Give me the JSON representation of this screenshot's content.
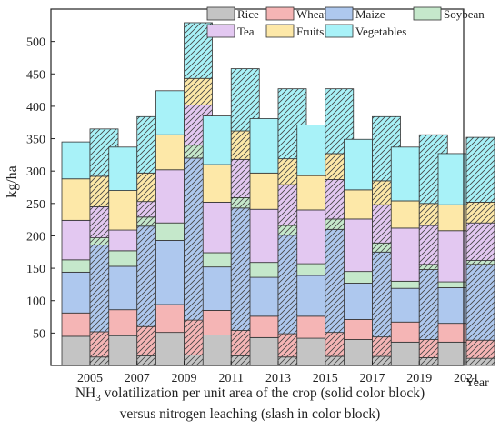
{
  "chart_data": {
    "type": "bar",
    "subtype": "stacked-paired",
    "categories": [
      "2005",
      "2007",
      "2009",
      "2011",
      "2013",
      "2015",
      "2017",
      "2019",
      "2021"
    ],
    "xlabel": "Year",
    "ylabel": "kg/ha",
    "ylim": [
      0,
      550
    ],
    "yticks": [
      50,
      100,
      150,
      200,
      250,
      300,
      350,
      400,
      450,
      500
    ],
    "grid": false,
    "legend_position": "top",
    "caption_line1": {
      "prefix": "NH",
      "subscript": "3",
      "suffix": " volatilization per unit area of the crop (solid color block)"
    },
    "caption_line2": "versus nitrogen leaching (slash in color block)",
    "series": [
      {
        "name": "Rice",
        "color": "#c4c4c4",
        "volatilization": [
          45,
          46,
          51,
          47,
          43,
          42,
          40,
          36,
          36
        ],
        "leaching": [
          13,
          15,
          16,
          15,
          13,
          14,
          14,
          12,
          11
        ]
      },
      {
        "name": "Wheat",
        "color": "#f5b5b5",
        "volatilization": [
          36,
          40,
          43,
          38,
          33,
          34,
          31,
          31,
          29
        ],
        "leaching": [
          39,
          45,
          54,
          39,
          36,
          37,
          30,
          28,
          28
        ]
      },
      {
        "name": "Maize",
        "color": "#aec8ee",
        "volatilization": [
          63,
          67,
          99,
          67,
          60,
          63,
          56,
          52,
          55
        ],
        "leaching": [
          134,
          155,
          250,
          189,
          152,
          159,
          131,
          108,
          117
        ]
      },
      {
        "name": "Soybean",
        "color": "#c5e8cb",
        "volatilization": [
          19,
          24,
          27,
          22,
          23,
          18,
          18,
          11,
          9
        ],
        "leaching": [
          11,
          14,
          20,
          16,
          15,
          16,
          14,
          8,
          6
        ]
      },
      {
        "name": "Tea",
        "color": "#e3c8f1",
        "volatilization": [
          61,
          32,
          82,
          78,
          82,
          83,
          81,
          82,
          79
        ],
        "leaching": [
          48,
          24,
          62,
          59,
          63,
          61,
          59,
          60,
          58
        ]
      },
      {
        "name": "Fruits",
        "color": "#fde8a8",
        "volatilization": [
          64,
          61,
          54,
          58,
          56,
          53,
          45,
          42,
          40
        ],
        "leaching": [
          47,
          44,
          41,
          44,
          40,
          40,
          37,
          34,
          32
        ]
      },
      {
        "name": "Vegetables",
        "color": "#a8f2f8",
        "volatilization": [
          57,
          67,
          68,
          75,
          84,
          78,
          78,
          83,
          79
        ],
        "leaching": [
          73,
          87,
          86,
          96,
          108,
          100,
          99,
          106,
          100
        ]
      }
    ]
  }
}
